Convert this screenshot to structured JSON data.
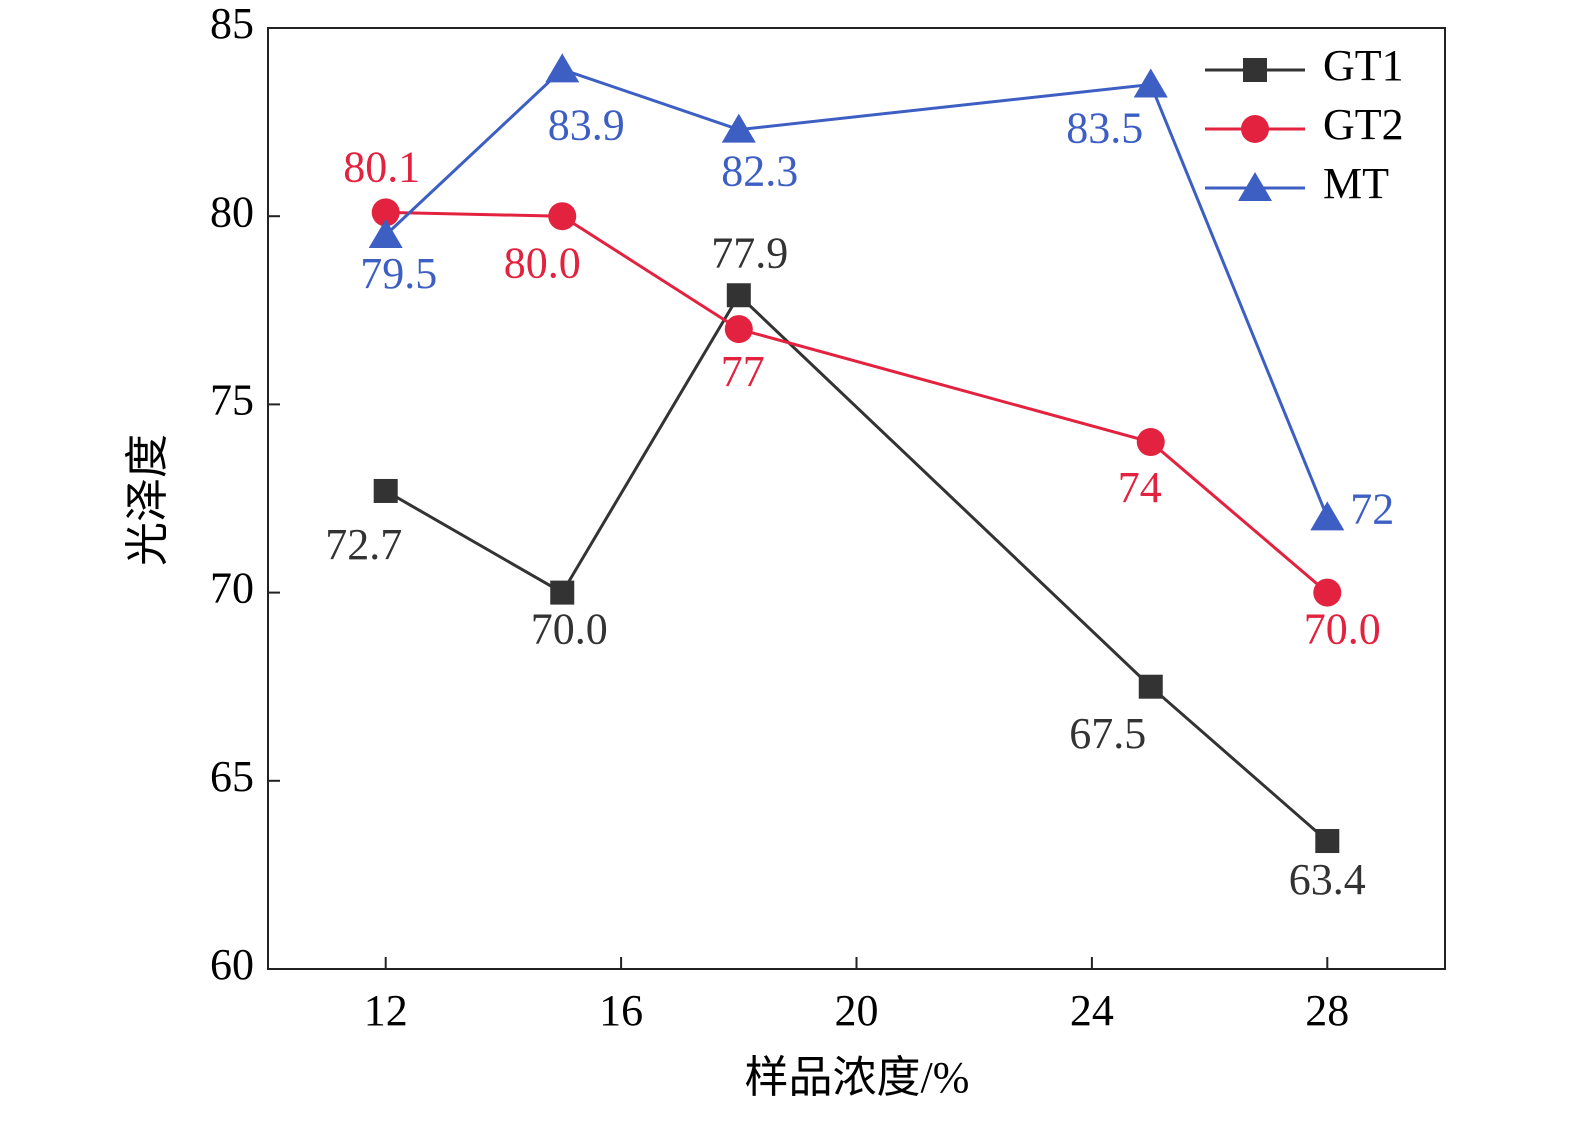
{
  "chart_data": {
    "type": "line",
    "x_label": "样品浓度/%",
    "y_label": "光泽度",
    "x": [
      12,
      15,
      18,
      25,
      28
    ],
    "xlim": [
      10,
      30
    ],
    "xticks": [
      12,
      16,
      20,
      24,
      28
    ],
    "ylim": [
      60,
      85
    ],
    "yticks": [
      60,
      65,
      70,
      75,
      80,
      85
    ],
    "legend": "upper right",
    "series": [
      {
        "name": "GT1",
        "color": "#333333",
        "marker": "square",
        "values": [
          72.7,
          70.0,
          77.9,
          67.5,
          63.4
        ],
        "value_labels": [
          "72.7",
          "70.0",
          "77.9",
          "67.5",
          "63.4"
        ]
      },
      {
        "name": "GT2",
        "color": "#e3223f",
        "marker": "circle",
        "values": [
          80.1,
          80.0,
          77,
          74,
          70.0
        ],
        "value_labels": [
          "80.1",
          "80.0",
          "77",
          "74",
          "70.0"
        ]
      },
      {
        "name": "MT",
        "color": "#3d5fc4",
        "marker": "triangle",
        "values": [
          79.5,
          83.9,
          82.3,
          83.5,
          72
        ],
        "value_labels": [
          "79.5",
          "83.9",
          "82.3",
          "83.5",
          "72"
        ]
      }
    ]
  }
}
